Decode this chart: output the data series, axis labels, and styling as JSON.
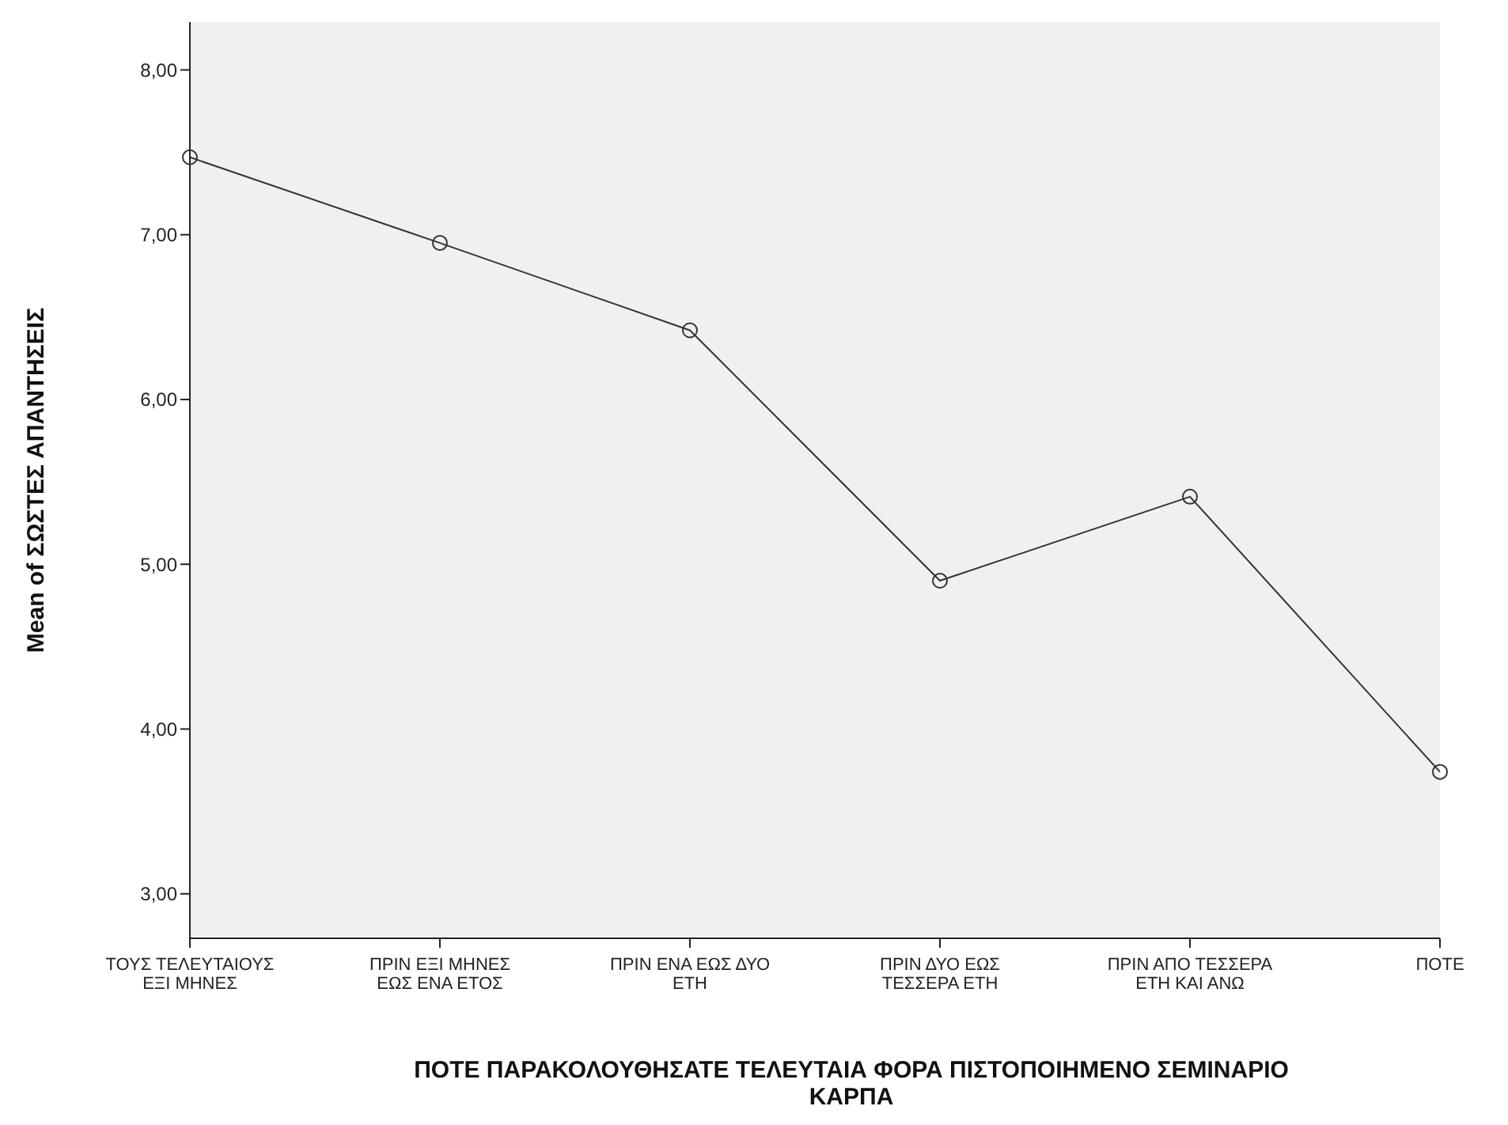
{
  "chart_data": {
    "type": "line",
    "xlabel": "ΠΟΤΕ ΠΑΡΑΚΟΛΟΥΘΗΣΑΤΕ ΤΕΛΕΥΤΑΙΑ ΦΟΡΑ ΠΙΣΤΟΠΟΙΗΜΕΝΟ ΣΕΜΙΝΑΡΙΟ ΚΑΡΠΑ",
    "ylabel": "Mean of ΣΩΣΤΕΣ ΑΠΑΝΤΗΣΕΙΣ",
    "categories": [
      "ΤΟΥΣ ΤΕΛΕΥΤΑΙΟΥΣ ΕΞΙ ΜΗΝΕΣ",
      "ΠΡΙΝ ΕΞΙ ΜΗΝΕΣ ΕΩΣ ΕΝΑ ΕΤΟΣ",
      "ΠΡΙΝ ΕΝΑ ΕΩΣ ΔΥΟ ΕΤΗ",
      "ΠΡΙΝ ΔΥΟ ΕΩΣ ΤΕΣΣΕΡΑ ΕΤΗ",
      "ΠΡΙΝ ΑΠΟ ΤΕΣΣΕΡΑ ΕΤΗ ΚΑΙ ΑΝΩ",
      "ΠΟΤΕ"
    ],
    "values": [
      7.47,
      6.95,
      6.42,
      4.9,
      5.41,
      3.74
    ],
    "color": "#333333",
    "marker": "circle",
    "ylim": [
      2.73,
      8.29
    ],
    "yticks": [
      {
        "value": 3,
        "label": "3,00"
      },
      {
        "value": 4,
        "label": "4,00"
      },
      {
        "value": 5,
        "label": "5,00"
      },
      {
        "value": 6,
        "label": "6,00"
      },
      {
        "value": 7,
        "label": "7,00"
      },
      {
        "value": 8,
        "label": "8,00"
      }
    ],
    "grid": false
  }
}
